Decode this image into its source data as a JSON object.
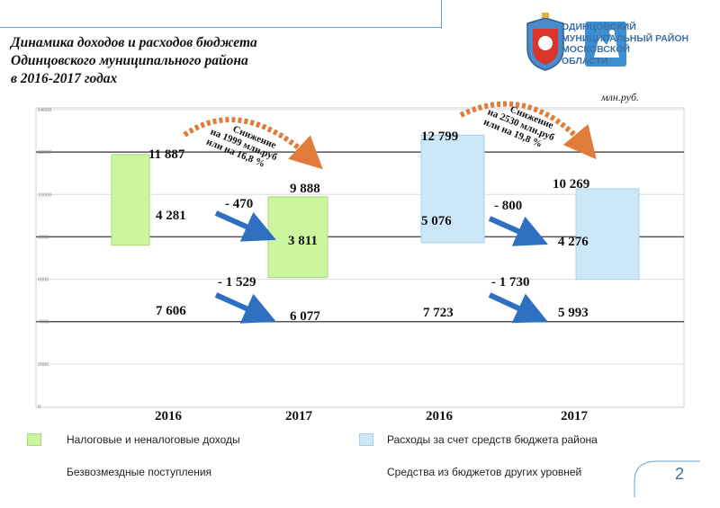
{
  "title": {
    "line1": "Динамика доходов и расходов бюджета",
    "line2": "Одинцовского муниципального района",
    "line3": "в 2016-2017 годах"
  },
  "org": {
    "line1": "ОДИНЦОВСКИЙ",
    "line2": "МУНИЦИПАЛЬНЫЙ РАЙОН",
    "line3": "МОСКОВСКОЙ",
    "line4": "ОБЛАСТИ"
  },
  "units": "млн.руб.",
  "colors": {
    "income": "#ccf5a0",
    "expense": "#cce8f8",
    "frame": "#6aa0c8",
    "brand": "#3d6fa6",
    "arrow": "#2f6fbf"
  },
  "chart_data": {
    "type": "bar",
    "ylim": [
      0,
      14000
    ],
    "y_ticks": [
      "0",
      "2000",
      "4000",
      "6000",
      "8000",
      "10000",
      "12000",
      "14000"
    ],
    "x_labels": [
      "2016",
      "2017",
      "2016",
      "2017"
    ],
    "series": [
      {
        "name": "Налоговые и неналоговые доходы",
        "values": [
          4281,
          3811,
          null,
          null
        ]
      },
      {
        "name": "Безвозмездные поступления",
        "values": [
          7606,
          6077,
          null,
          null
        ]
      },
      {
        "name": "Расходы за счет средств бюджета района",
        "values": [
          null,
          null,
          5076,
          4276
        ]
      },
      {
        "name": "Средства из бюджетов других уровней",
        "values": [
          null,
          null,
          7723,
          5993
        ]
      }
    ],
    "totals": [
      "11 887",
      "9 888",
      "12 799",
      "10 269"
    ],
    "segment_labels_top": [
      "4 281",
      "3 811",
      "5 076",
      "4 276"
    ],
    "segment_labels_bottom": [
      "7 606",
      "6 077",
      "7 723",
      "5 993"
    ],
    "changes_top": [
      "- 470",
      "- 800"
    ],
    "changes_bottom": [
      "- 1 529",
      "- 1 730"
    ],
    "annotations": [
      {
        "line1": "Снижение",
        "line2": "на 1999 млн.руб",
        "line3": "или на 16,8 %"
      },
      {
        "line1": "Снижение",
        "line2": "на 2530 млн.руб",
        "line3": "или на 19,8 %"
      }
    ]
  },
  "legend": {
    "income_label": "Налоговые и неналоговые доходы",
    "grants_label": "Безвозмездные поступления",
    "expense_label": "Расходы за счет средств бюджета района",
    "other_label": "Средства из бюджетов других уровней"
  },
  "page_number": "2"
}
